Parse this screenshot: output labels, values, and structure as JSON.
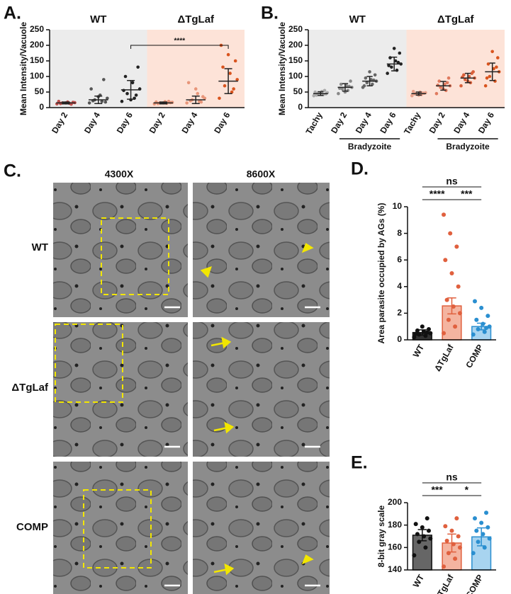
{
  "chart_data": [
    {
      "type": "dot",
      "panel": "A.",
      "ylabel": "Mean Intensity/Vacuole",
      "ylim": [
        0,
        250
      ],
      "yticks": [
        0,
        50,
        100,
        150,
        200,
        250
      ],
      "groups": [
        {
          "name": "WT",
          "background": "#ececec",
          "categories": [
            "Day 2",
            "Day 4",
            "Day 6"
          ],
          "colors": [
            "#c0504d",
            "#555555",
            "#222222"
          ],
          "means": [
            15,
            25,
            57
          ],
          "sd": [
            3,
            12,
            30
          ],
          "points": [
            [
              12,
              14,
              15,
              16,
              18,
              13,
              17,
              15,
              20,
              11
            ],
            [
              15,
              20,
              25,
              30,
              40,
              22,
              18,
              35,
              60,
              90
            ],
            [
              20,
              30,
              45,
              60,
              80,
              100,
              130,
              25,
              55,
              40
            ]
          ]
        },
        {
          "name": "ΔTgLaf",
          "background": "#fde3d8",
          "categories": [
            "Day 2",
            "Day 4",
            "Day 6"
          ],
          "colors": [
            "#e8967a",
            "#e8967a",
            "#d9541e"
          ],
          "means": [
            15,
            25,
            85
          ],
          "sd": [
            3,
            12,
            40
          ],
          "points": [
            [
              12,
              14,
              15,
              17,
              19,
              13,
              16,
              15,
              18,
              20
            ],
            [
              15,
              20,
              25,
              30,
              45,
              22,
              35,
              60,
              80,
              18
            ],
            [
              30,
              50,
              70,
              90,
              110,
              130,
              150,
              170,
              200,
              60
            ]
          ]
        }
      ],
      "significance": {
        "label": "****",
        "y": 200
      }
    },
    {
      "type": "dot",
      "panel": "B.",
      "ylabel": "Mean Intensity/Vacuole",
      "ylim": [
        0,
        250
      ],
      "yticks": [
        0,
        50,
        100,
        150,
        200,
        250
      ],
      "groups": [
        {
          "name": "WT",
          "background": "#ececec",
          "subgroup": "Bradyzoite",
          "categories": [
            "Tachy",
            "Day 2",
            "Day 4",
            "Day 6"
          ],
          "colors": [
            "#aaaaaa",
            "#888888",
            "#666666",
            "#222222"
          ],
          "means": [
            45,
            65,
            85,
            140
          ],
          "sd": [
            6,
            12,
            15,
            22
          ],
          "points": [
            [
              38,
              42,
              45,
              48,
              52,
              40,
              44,
              47,
              50,
              55
            ],
            [
              45,
              55,
              60,
              65,
              70,
              75,
              85,
              50,
              62,
              68
            ],
            [
              65,
              75,
              80,
              85,
              90,
              95,
              105,
              115,
              70,
              88
            ],
            [
              110,
              120,
              130,
              140,
              150,
              160,
              175,
              190,
              135,
              145
            ]
          ]
        },
        {
          "name": "ΔTgLaf",
          "background": "#fde3d8",
          "subgroup": "Bradyzoite",
          "categories": [
            "Tachy",
            "Day 2",
            "Day 4",
            "Day 6"
          ],
          "colors": [
            "#e8a08a",
            "#e07a5f",
            "#d9603a",
            "#d9541e"
          ],
          "means": [
            45,
            70,
            95,
            115
          ],
          "sd": [
            5,
            14,
            15,
            28
          ],
          "points": [
            [
              38,
              42,
              45,
              48,
              50,
              44,
              46,
              40,
              52,
              47
            ],
            [
              45,
              55,
              65,
              70,
              75,
              85,
              95,
              60,
              72,
              80
            ],
            [
              70,
              80,
              90,
              95,
              100,
              105,
              115,
              85,
              98,
              110
            ],
            [
              70,
              85,
              100,
              115,
              125,
              140,
              160,
              180,
              95,
              130
            ]
          ]
        }
      ]
    },
    {
      "type": "bar",
      "panel": "D.",
      "ylabel": "Area parasite occupied by AGs (%)",
      "ylim": [
        0,
        10
      ],
      "yticks": [
        0,
        2,
        4,
        6,
        8,
        10
      ],
      "categories": [
        "WT",
        "ΔTgLaf",
        "COMP"
      ],
      "values": [
        0.55,
        2.55,
        1.0
      ],
      "errors": [
        0.2,
        0.6,
        0.25
      ],
      "fills": [
        "#333333",
        "#f4b4a0",
        "#a8d4f0"
      ],
      "colors": [
        "#111111",
        "#e0603e",
        "#2a8fd0"
      ],
      "points": [
        [
          0.2,
          0.3,
          0.4,
          0.5,
          0.6,
          0.7,
          0.8,
          1.0,
          0.45,
          0.55
        ],
        [
          0.5,
          1,
          1.5,
          2,
          2.5,
          3,
          4,
          5,
          6,
          7,
          8,
          9.4
        ],
        [
          0.4,
          0.6,
          0.8,
          1,
          1.2,
          1.5,
          1.8,
          2.4,
          2.9,
          0.9
        ]
      ],
      "significance": [
        {
          "label": "ns",
          "from": 0,
          "to": 2
        },
        {
          "label": "****",
          "from": 0,
          "to": 1
        },
        {
          "label": "***",
          "from": 1,
          "to": 2
        }
      ]
    },
    {
      "type": "bar",
      "panel": "E.",
      "ylabel": "8-bit gray scale",
      "ylim": [
        140,
        200
      ],
      "yticks": [
        140,
        160,
        180,
        200
      ],
      "categories": [
        "WT",
        "ΔTgLaf",
        "COMP"
      ],
      "values": [
        171,
        164,
        169.5
      ],
      "errors": [
        5,
        8,
        8
      ],
      "fills": [
        "#666666",
        "#f4b4a0",
        "#a8d4f0"
      ],
      "colors": [
        "#111111",
        "#e0603e",
        "#2a8fd0"
      ],
      "points": [
        [
          153,
          160,
          165,
          168,
          170,
          172,
          175,
          178,
          181,
          186
        ],
        [
          143,
          150,
          155,
          160,
          163,
          166,
          170,
          175,
          179,
          186
        ],
        [
          155,
          160,
          165,
          168,
          172,
          175,
          178,
          182,
          186,
          191
        ]
      ],
      "significance": [
        {
          "label": "ns",
          "from": 0,
          "to": 2
        },
        {
          "label": "***",
          "from": 0,
          "to": 1
        },
        {
          "label": "*",
          "from": 1,
          "to": 2
        }
      ]
    }
  ],
  "micrographs": {
    "panel": "C.",
    "columns": [
      "4300X",
      "8600X"
    ],
    "rows": [
      "WT",
      "ΔTgLaf",
      "COMP"
    ]
  }
}
